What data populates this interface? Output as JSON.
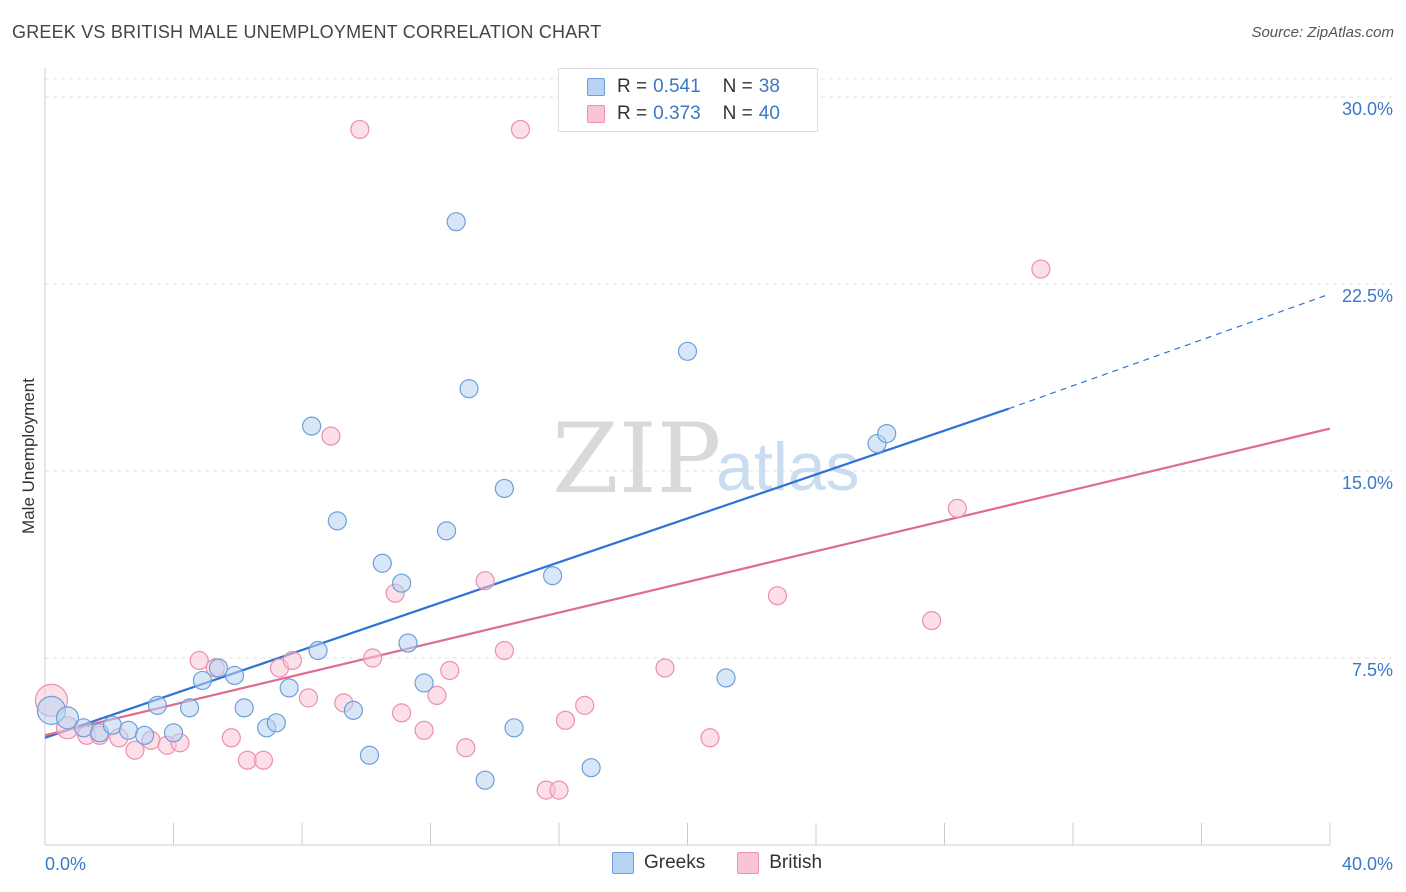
{
  "header": {
    "title": "GREEK VS BRITISH MALE UNEMPLOYMENT CORRELATION CHART",
    "source": "Source: ZipAtlas.com"
  },
  "watermark": {
    "zip": "ZIP",
    "atlas": "atlas"
  },
  "legend": {
    "greeks": {
      "r_label": "R =",
      "r_value": "0.541",
      "n_label": "N =",
      "n_value": "38"
    },
    "british": {
      "r_label": "R =",
      "r_value": "0.373",
      "n_label": "N =",
      "n_value": "40"
    }
  },
  "bottom_legend": {
    "greeks": "Greeks",
    "british": "British"
  },
  "colors": {
    "greeks_fill": "#b8d3f3",
    "greeks_stroke": "#6d9fd9",
    "greeks_line": "#2f73d4",
    "british_fill": "#f9c5d5",
    "british_stroke": "#eb90ad",
    "british_line": "#e06b92",
    "tick_text": "#3b78c8"
  },
  "chart_data": {
    "type": "scatter",
    "title": "GREEK VS BRITISH MALE UNEMPLOYMENT CORRELATION CHART",
    "xlabel": "",
    "ylabel": "Male Unemployment",
    "xlim": [
      0,
      40
    ],
    "ylim": [
      0,
      30
    ],
    "x_tick_labels": [
      "0.0%",
      "40.0%"
    ],
    "y_ticks": [
      7.5,
      15.0,
      22.5,
      30.0
    ],
    "y_tick_labels": [
      "7.5%",
      "15.0%",
      "22.5%",
      "30.0%"
    ],
    "grid": "horizontal dashed",
    "legend_position": "top-center",
    "series": [
      {
        "name": "Greeks",
        "r": 0.541,
        "n": 38,
        "trend": {
          "x": [
            0,
            30
          ],
          "y": [
            4.3,
            17.5
          ],
          "dashed_to": [
            40,
            22.1
          ]
        },
        "points": [
          [
            0.2,
            5.4,
            14
          ],
          [
            0.7,
            5.1,
            11
          ],
          [
            1.2,
            4.7,
            9
          ],
          [
            1.7,
            4.5,
            9
          ],
          [
            2.1,
            4.8,
            9
          ],
          [
            2.6,
            4.6,
            9
          ],
          [
            3.1,
            4.4,
            9
          ],
          [
            3.5,
            5.6,
            9
          ],
          [
            4.0,
            4.5,
            9
          ],
          [
            4.5,
            5.5,
            9
          ],
          [
            4.9,
            6.6,
            9
          ],
          [
            5.4,
            7.1,
            9
          ],
          [
            5.9,
            6.8,
            9
          ],
          [
            6.2,
            5.5,
            9
          ],
          [
            6.9,
            4.7,
            9
          ],
          [
            7.2,
            4.9,
            9
          ],
          [
            7.6,
            6.3,
            9
          ],
          [
            8.3,
            16.8,
            9
          ],
          [
            8.5,
            7.8,
            9
          ],
          [
            9.1,
            13.0,
            9
          ],
          [
            9.6,
            5.4,
            9
          ],
          [
            10.1,
            3.6,
            9
          ],
          [
            10.5,
            11.3,
            9
          ],
          [
            11.1,
            10.5,
            9
          ],
          [
            11.3,
            8.1,
            9
          ],
          [
            11.8,
            6.5,
            9
          ],
          [
            12.5,
            12.6,
            9
          ],
          [
            12.8,
            25.0,
            9
          ],
          [
            13.2,
            18.3,
            9
          ],
          [
            13.7,
            2.6,
            9
          ],
          [
            14.3,
            14.3,
            9
          ],
          [
            14.6,
            4.7,
            9
          ],
          [
            15.8,
            10.8,
            9
          ],
          [
            17.0,
            3.1,
            9
          ],
          [
            20.0,
            19.8,
            9
          ],
          [
            21.2,
            6.7,
            9
          ],
          [
            25.9,
            16.1,
            9
          ],
          [
            26.2,
            16.5,
            9
          ]
        ]
      },
      {
        "name": "British",
        "r": 0.373,
        "n": 40,
        "trend": {
          "x": [
            0,
            40
          ],
          "y": [
            4.4,
            16.7
          ]
        },
        "points": [
          [
            0.2,
            5.8,
            16
          ],
          [
            0.7,
            4.7,
            11
          ],
          [
            1.3,
            4.4,
            9
          ],
          [
            1.7,
            4.4,
            9
          ],
          [
            2.3,
            4.3,
            9
          ],
          [
            2.8,
            3.8,
            9
          ],
          [
            3.3,
            4.2,
            9
          ],
          [
            3.8,
            4.0,
            9
          ],
          [
            4.2,
            4.1,
            9
          ],
          [
            4.8,
            7.4,
            9
          ],
          [
            5.3,
            7.1,
            9
          ],
          [
            5.8,
            4.3,
            9
          ],
          [
            6.3,
            3.4,
            9
          ],
          [
            6.8,
            3.4,
            9
          ],
          [
            7.3,
            7.1,
            9
          ],
          [
            7.7,
            7.4,
            9
          ],
          [
            8.2,
            5.9,
            9
          ],
          [
            8.9,
            16.4,
            9
          ],
          [
            9.3,
            5.7,
            9
          ],
          [
            9.8,
            28.7,
            9
          ],
          [
            10.2,
            7.5,
            9
          ],
          [
            10.9,
            10.1,
            9
          ],
          [
            11.1,
            5.3,
            9
          ],
          [
            11.8,
            4.6,
            9
          ],
          [
            12.2,
            6.0,
            9
          ],
          [
            12.6,
            7.0,
            9
          ],
          [
            13.1,
            3.9,
            9
          ],
          [
            13.7,
            10.6,
            9
          ],
          [
            14.3,
            7.8,
            9
          ],
          [
            14.8,
            28.7,
            9
          ],
          [
            15.6,
            2.2,
            9
          ],
          [
            16.0,
            2.2,
            9
          ],
          [
            16.2,
            5.0,
            9
          ],
          [
            16.8,
            5.6,
            9
          ],
          [
            19.3,
            7.1,
            9
          ],
          [
            20.7,
            4.3,
            9
          ],
          [
            22.8,
            10.0,
            9
          ],
          [
            27.6,
            9.0,
            9
          ],
          [
            28.4,
            13.5,
            9
          ],
          [
            31.0,
            23.1,
            9
          ]
        ]
      }
    ]
  }
}
